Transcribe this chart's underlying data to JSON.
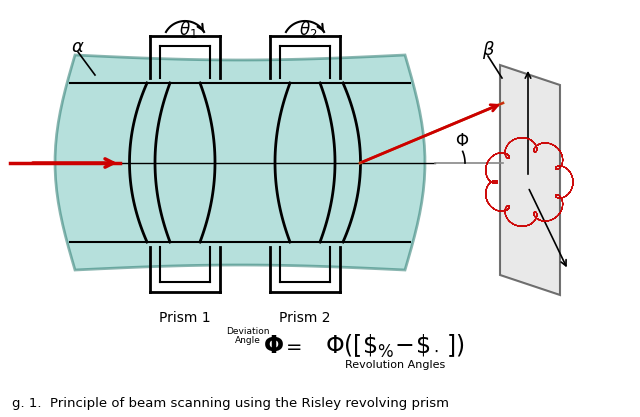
{
  "teal_color": "#7BC8C0",
  "teal_edge": "#2a7a70",
  "red_color": "#cc0000",
  "beam_orange": "#c8893a",
  "prism1_label": "Prism 1",
  "prism2_label": "Prism 2",
  "formula_deviation": "Deviation",
  "formula_angle": "Angle",
  "formula_sub": "Revolution Angles",
  "caption": "g. 1.  Principle of beam scanning using the Risley revolving prism"
}
